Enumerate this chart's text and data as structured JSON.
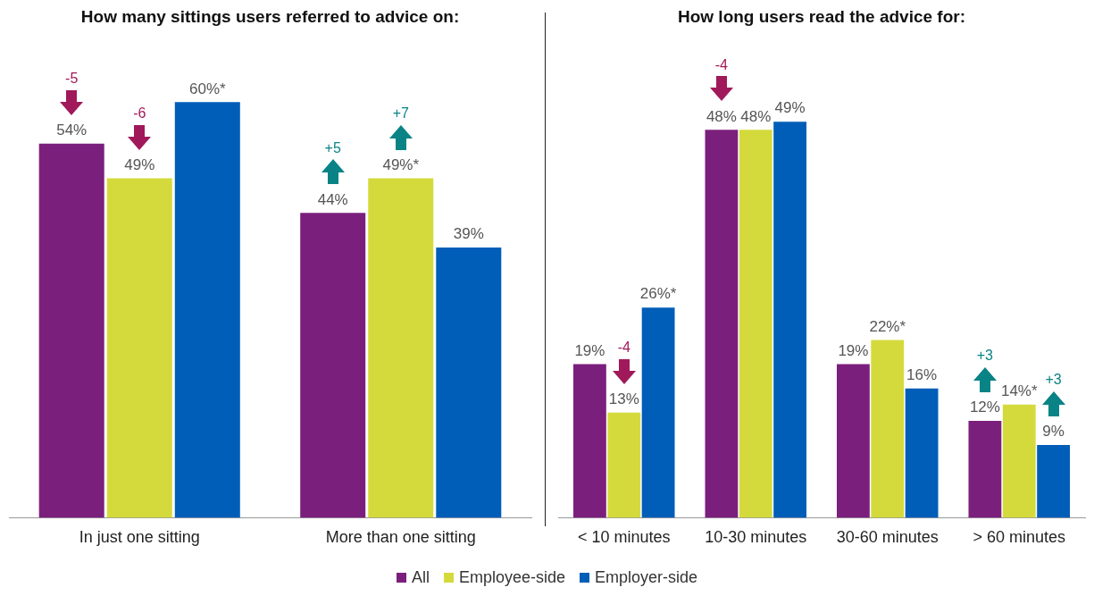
{
  "chart_data": [
    {
      "type": "bar",
      "title": "How many sittings users referred to advice on:",
      "categories": [
        "In just one sitting",
        "More than one sitting"
      ],
      "series": [
        {
          "name": "All",
          "color": "#7b1f7d",
          "values": [
            54,
            44
          ],
          "value_labels": [
            "54%",
            "44%"
          ]
        },
        {
          "name": "Employee-side",
          "color": "#d4da3c",
          "values": [
            49,
            49
          ],
          "value_labels": [
            "49%",
            "49%*"
          ]
        },
        {
          "name": "Employer-side",
          "color": "#005eb8",
          "values": [
            60,
            39
          ],
          "value_labels": [
            "60%*",
            "39%"
          ]
        }
      ],
      "tick_labels": "x",
      "grid": false,
      "legend": "bottom",
      "annotations": [
        "-5",
        "-6",
        "+5",
        "+7"
      ]
    },
    {
      "type": "bar",
      "title": "How long users read the advice for:",
      "categories": [
        "< 10 minutes",
        "10-30 minutes",
        "30-60 minutes",
        "> 60 minutes"
      ],
      "series": [
        {
          "color": "#7b1f7d",
          "values": [
            19,
            48,
            19,
            12
          ],
          "value_labels": [
            "19%",
            "48%",
            "19%",
            "12%"
          ]
        },
        {
          "color": "#d4da3c",
          "values": [
            13,
            48,
            22,
            14
          ],
          "value_labels": [
            "13%",
            "48%",
            "22%*",
            "14%*"
          ]
        },
        {
          "color": "#005eb8",
          "values": [
            26,
            49,
            16,
            9
          ],
          "value_labels": [
            "26%*",
            "49%",
            "16%",
            "9%"
          ]
        }
      ],
      "tick_labels": "x",
      "grid": false,
      "annotations": [
        "-4",
        "-4",
        "+3",
        "+3"
      ]
    }
  ]
}
